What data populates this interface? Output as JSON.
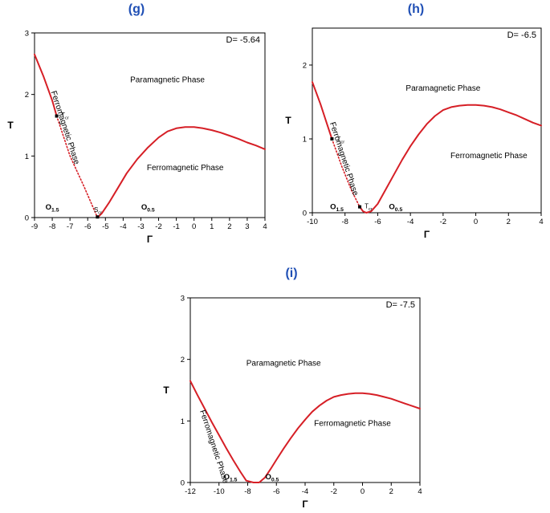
{
  "chart_data": [
    {
      "type": "line",
      "panel_label": "(g)",
      "d_label": "D= -5.64",
      "xlabel": "Γ",
      "ylabel": "T",
      "xlim": [
        -9,
        4
      ],
      "ylim": [
        0,
        3
      ],
      "xticks": [
        -9,
        -8,
        -7,
        -6,
        -5,
        -4,
        -3,
        -2,
        -1,
        0,
        1,
        2,
        3,
        4
      ],
      "yticks": [
        0,
        1,
        2,
        3
      ],
      "regions": [
        {
          "text": "Paramagnetic Phase",
          "x": -1.5,
          "y": 2.2,
          "rotate": false
        },
        {
          "text": "Ferromagnetic Phase",
          "x": -0.5,
          "y": 0.77,
          "rotate": false
        },
        {
          "text": "Ferromagnetic Phase",
          "x": -7.4,
          "y": 1.45,
          "rotate": true
        }
      ],
      "points": [
        {
          "name": "T_cr",
          "label": "T",
          "sub": "cr",
          "x": -7.75,
          "y": 1.65,
          "lx": 0.25,
          "ly": 0.02
        },
        {
          "name": "S_cr",
          "label": "S",
          "sub": "cr",
          "x": -5.45,
          "y": 0.01,
          "lx": -0.2,
          "ly": 0.12
        }
      ],
      "o_labels": [
        {
          "text": "O",
          "sub": "1.5",
          "x": -8.0,
          "y": 0.13
        },
        {
          "text": "O",
          "sub": "0.5",
          "x": -2.6,
          "y": 0.13
        }
      ],
      "series": [
        {
          "style": "solid",
          "x": [
            -9,
            -8.5,
            -8,
            -7.75
          ],
          "y": [
            2.65,
            2.3,
            1.9,
            1.65
          ]
        },
        {
          "style": "dotted",
          "x": [
            -7.75,
            -7.0,
            -6.2,
            -5.45
          ],
          "y": [
            1.65,
            1.0,
            0.5,
            0.0
          ]
        },
        {
          "style": "solid",
          "x": [
            -5.45,
            -5.2,
            -4.8,
            -4.3,
            -3.8,
            -3.2,
            -2.6,
            -2.0,
            -1.5,
            -1.0,
            -0.5,
            0.0,
            0.5,
            1.0,
            1.5,
            2.0,
            2.5,
            3.0,
            3.5,
            4.0
          ],
          "y": [
            0.0,
            0.07,
            0.24,
            0.48,
            0.72,
            0.95,
            1.14,
            1.3,
            1.4,
            1.45,
            1.47,
            1.47,
            1.45,
            1.42,
            1.38,
            1.33,
            1.28,
            1.22,
            1.17,
            1.11
          ]
        }
      ]
    },
    {
      "type": "line",
      "panel_label": "(h)",
      "d_label": "D= -6.5",
      "xlabel": "Γ",
      "ylabel": "T",
      "xlim": [
        -10,
        4
      ],
      "ylim": [
        0,
        2.5
      ],
      "xticks": [
        -10,
        -8,
        -6,
        -4,
        -2,
        0,
        2,
        4
      ],
      "yticks": [
        0,
        1,
        2
      ],
      "regions": [
        {
          "text": "Paramagnetic Phase",
          "x": -2.0,
          "y": 1.65,
          "rotate": false
        },
        {
          "text": "Ferromagnetic Phase",
          "x": 0.8,
          "y": 0.74,
          "rotate": false
        },
        {
          "text": "Ferromagnetic Phase",
          "x": -8.2,
          "y": 0.72,
          "rotate": true
        }
      ],
      "points": [
        {
          "name": "T_cr",
          "label": "T",
          "sub": "cr",
          "x": -8.8,
          "y": 1.0,
          "lx": 0.3,
          "ly": 0.0
        },
        {
          "name": "T_cr2",
          "label": "T",
          "sub": "cr",
          "x": -7.1,
          "y": 0.08,
          "lx": 0.3,
          "ly": 0.01
        }
      ],
      "o_labels": [
        {
          "text": "O",
          "sub": "1.5",
          "x": -8.5,
          "y": 0.05
        },
        {
          "text": "O",
          "sub": "0.5",
          "x": -4.9,
          "y": 0.05
        }
      ],
      "series": [
        {
          "style": "solid",
          "x": [
            -10,
            -9.5,
            -9.1,
            -8.8
          ],
          "y": [
            1.77,
            1.47,
            1.2,
            1.0
          ]
        },
        {
          "style": "dotted",
          "x": [
            -8.8,
            -8.2,
            -7.6,
            -7.1
          ],
          "y": [
            1.0,
            0.63,
            0.3,
            0.08
          ]
        },
        {
          "style": "solid",
          "x": [
            -7.1,
            -6.9,
            -6.7,
            -6.4,
            -6.0,
            -5.5,
            -5.0,
            -4.5,
            -4.0,
            -3.5,
            -3.0,
            -2.5,
            -2.0,
            -1.5,
            -1.0,
            -0.5,
            0.0,
            0.5,
            1.0,
            1.5,
            2.0,
            2.5,
            3.0,
            3.5,
            4.0
          ],
          "y": [
            0.08,
            0.02,
            0.0,
            0.02,
            0.12,
            0.32,
            0.52,
            0.72,
            0.9,
            1.06,
            1.2,
            1.31,
            1.39,
            1.43,
            1.45,
            1.46,
            1.46,
            1.45,
            1.43,
            1.4,
            1.36,
            1.32,
            1.27,
            1.22,
            1.18
          ]
        }
      ]
    },
    {
      "type": "line",
      "panel_label": "(i)",
      "d_label": "D= -7.5",
      "xlabel": "Γ",
      "ylabel": "T",
      "xlim": [
        -12,
        4
      ],
      "ylim": [
        0,
        3
      ],
      "xticks": [
        -12,
        -10,
        -8,
        -6,
        -4,
        -2,
        0,
        2,
        4
      ],
      "yticks": [
        0,
        1,
        2,
        3
      ],
      "regions": [
        {
          "text": "Paramagnetic Phase",
          "x": -5.5,
          "y": 1.9,
          "rotate": false
        },
        {
          "text": "Ferromagnetic Phase",
          "x": -0.7,
          "y": 0.92,
          "rotate": false
        },
        {
          "text": "Ferromagnetic Phase",
          "x": -10.5,
          "y": 0.57,
          "rotate": true
        }
      ],
      "points": [],
      "o_labels": [
        {
          "text": "O",
          "sub": "1.5",
          "x": -9.2,
          "y": 0.05
        },
        {
          "text": "O",
          "sub": "0.5",
          "x": -6.3,
          "y": 0.05
        }
      ],
      "series": [
        {
          "style": "solid",
          "x": [
            -12,
            -11.5,
            -11,
            -10.5,
            -10,
            -9.5,
            -9,
            -8.5,
            -8.1,
            -7.6,
            -7.2,
            -6.8,
            -6.4,
            -6.0,
            -5.5,
            -5.0,
            -4.5,
            -4.0,
            -3.5,
            -3.0,
            -2.5,
            -2.0,
            -1.5,
            -1.0,
            -0.5,
            0.0,
            0.5,
            1.0,
            1.5,
            2.0,
            2.5,
            3.0,
            3.5,
            4.0
          ],
          "y": [
            1.65,
            1.42,
            1.2,
            0.98,
            0.77,
            0.56,
            0.36,
            0.17,
            0.03,
            0.0,
            0.0,
            0.08,
            0.22,
            0.37,
            0.55,
            0.72,
            0.88,
            1.02,
            1.15,
            1.25,
            1.33,
            1.39,
            1.42,
            1.44,
            1.45,
            1.45,
            1.44,
            1.42,
            1.39,
            1.36,
            1.32,
            1.28,
            1.24,
            1.2
          ]
        }
      ]
    }
  ]
}
